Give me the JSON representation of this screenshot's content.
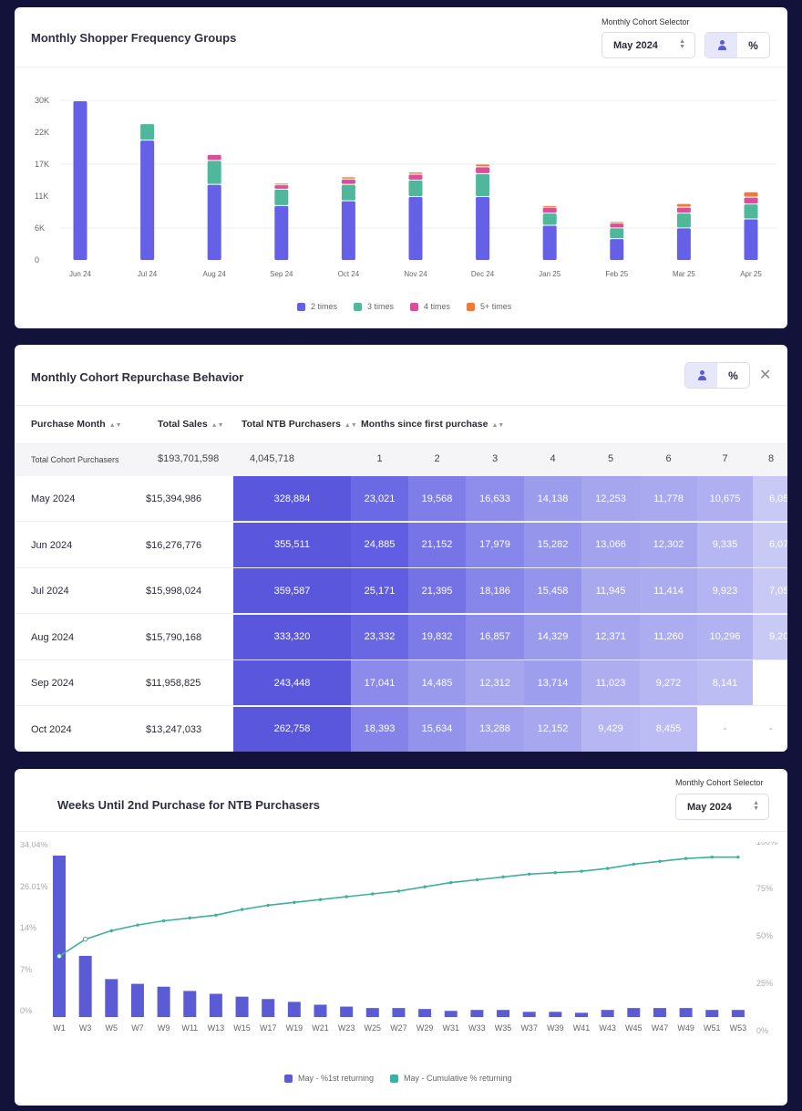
{
  "card1": {
    "title": "Monthly Shopper Frequency Groups",
    "selector_label": "Monthly Cohort Selector",
    "selector_value": "May 2024",
    "toggle_percent": "%",
    "chart_data": {
      "type": "bar",
      "stacked": true,
      "categories": [
        "Jun 24",
        "Jul 24",
        "Aug 24",
        "Sep 24",
        "Oct 24",
        "Nov 24",
        "Dec 24",
        "Jan 25",
        "Feb 25",
        "Mar 25",
        "Apr 25"
      ],
      "y_ticks": [
        "30K",
        "22K",
        "17K",
        "11K",
        "6K",
        "0"
      ],
      "ylim": [
        0,
        30000
      ],
      "series": [
        {
          "name": "2 times",
          "color": "#6560e8",
          "values": [
            30000,
            22600,
            14300,
            10300,
            11200,
            12000,
            12000,
            6600,
            4100,
            6100,
            7800
          ]
        },
        {
          "name": "3 times",
          "color": "#4fb89a",
          "values": [
            0,
            3100,
            4500,
            3100,
            3100,
            3100,
            4300,
            2300,
            2000,
            2800,
            2800
          ]
        },
        {
          "name": "4 times",
          "color": "#d94f9a",
          "values": [
            0,
            0,
            1100,
            800,
            1000,
            1100,
            1300,
            1100,
            900,
            1100,
            1300
          ]
        },
        {
          "name": "5+ times",
          "color": "#ee7a38",
          "values": [
            0,
            0,
            0,
            300,
            400,
            400,
            500,
            300,
            300,
            700,
            1000
          ]
        }
      ],
      "grid": true,
      "legend_position": "bottom"
    }
  },
  "card2": {
    "title": "Monthly Cohort Repurchase Behavior",
    "toggle_percent": "%",
    "close_icon": "close-icon",
    "headers": {
      "purchase_month": "Purchase Month",
      "total_sales": "Total Sales",
      "total_ntb": "Total NTB Purchasers",
      "months_since": "Months since first purchase"
    },
    "totals": {
      "label": "Total Cohort Purchasers",
      "sales": "$193,701,598",
      "ntb": "4,045,718",
      "months": [
        "1",
        "2",
        "3",
        "4",
        "5",
        "6",
        "7",
        "8"
      ]
    },
    "rows": [
      {
        "month": "May 2024",
        "sales": "$15,394,986",
        "ntb": "328,884",
        "values": [
          "23,021",
          "19,568",
          "16,633",
          "14,138",
          "12,253",
          "11,778",
          "10,675",
          "6,05"
        ]
      },
      {
        "month": "Jun 2024",
        "sales": "$16,276,776",
        "ntb": "355,511",
        "values": [
          "24,885",
          "21,152",
          "17,979",
          "15,282",
          "13,066",
          "12,302",
          "9,335",
          "6,07"
        ]
      },
      {
        "month": "Jul 2024",
        "sales": "$15,998,024",
        "ntb": "359,587",
        "values": [
          "25,171",
          "21,395",
          "18,186",
          "15,458",
          "11,945",
          "11,414",
          "9,923",
          "7,05"
        ]
      },
      {
        "month": "Aug 2024",
        "sales": "$15,790,168",
        "ntb": "333,320",
        "values": [
          "23,332",
          "19,832",
          "16,857",
          "14,329",
          "12,371",
          "11,260",
          "10,296",
          "9,20"
        ]
      },
      {
        "month": "Sep 2024",
        "sales": "$11,958,825",
        "ntb": "243,448",
        "values": [
          "17,041",
          "14,485",
          "12,312",
          "13,714",
          "11,023",
          "9,272",
          "8,141",
          ""
        ]
      },
      {
        "month": "Oct 2024",
        "sales": "$13,247,033",
        "ntb": "262,758",
        "values": [
          "18,393",
          "15,634",
          "13,288",
          "12,152",
          "9,429",
          "8,455",
          "-",
          "-"
        ]
      }
    ]
  },
  "card3": {
    "title": "Weeks Until 2nd Purchase for NTB Purchasers",
    "selector_label": "Monthly Cohort Selector",
    "selector_value": "May 2024",
    "chart_data": {
      "type": "bar",
      "categories": [
        "W1",
        "W3",
        "W5",
        "W7",
        "W9",
        "W11",
        "W13",
        "W15",
        "W17",
        "W19",
        "W21",
        "W23",
        "W25",
        "W27",
        "W29",
        "W31",
        "W33",
        "W35",
        "W37",
        "W39",
        "W41",
        "W43",
        "W45",
        "W47",
        "W49",
        "W51",
        "W53"
      ],
      "y_left_ticks": [
        "34.04%",
        "26.01%",
        "14%",
        "7%",
        "0%"
      ],
      "y_right_ticks": [
        "100%",
        "75%",
        "50%",
        "25%",
        "0%"
      ],
      "series": [
        {
          "name": "May - %1st returning",
          "type": "bar",
          "color": "#5b5bd6",
          "axis": "left",
          "values": [
            34.04,
            12.9,
            8.0,
            7.0,
            6.4,
            5.5,
            4.9,
            4.3,
            3.8,
            3.2,
            2.6,
            2.2,
            1.9,
            1.9,
            1.7,
            1.3,
            1.5,
            1.5,
            1.1,
            1.1,
            0.9,
            1.5,
            1.9,
            1.9,
            1.9,
            1.5,
            1.5
          ]
        },
        {
          "name": "May - Cumulative % returning",
          "type": "line",
          "color": "#3fb0a0",
          "axis": "right",
          "values": [
            43,
            55,
            61,
            65,
            68,
            70,
            72,
            76,
            79,
            81,
            83,
            85,
            87,
            89,
            92,
            95,
            97,
            99,
            101,
            102,
            103,
            105,
            108,
            110,
            112,
            113,
            113
          ]
        }
      ],
      "grid": false,
      "legend_position": "bottom"
    }
  }
}
